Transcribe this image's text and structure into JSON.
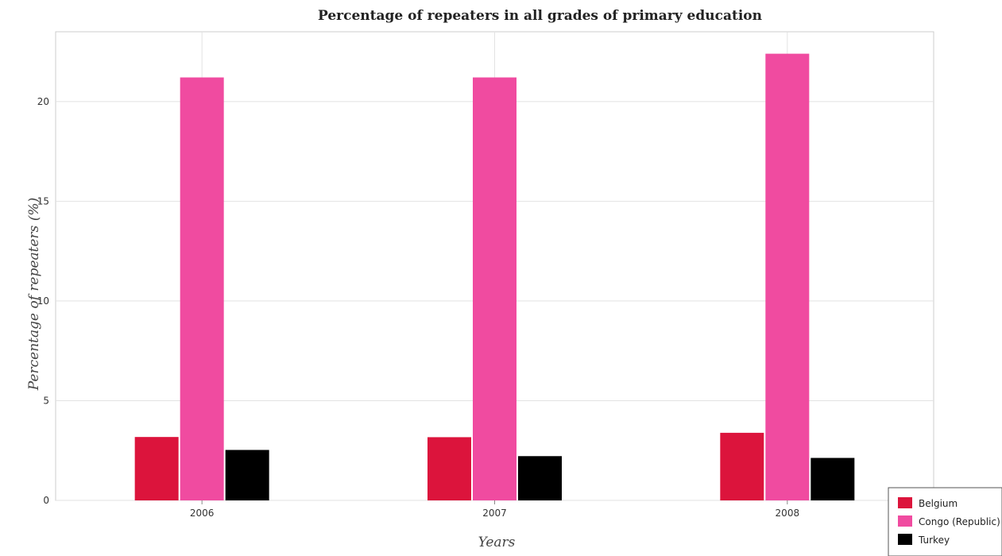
{
  "chart_data": {
    "type": "bar",
    "title": "Percentage of repeaters in all grades of primary education",
    "xlabel": "Years",
    "ylabel": "Percentage of repeaters (%)",
    "categories": [
      "2006",
      "2007",
      "2008"
    ],
    "ylim": [
      0,
      23.5
    ],
    "yticks": [
      0,
      5,
      10,
      15,
      20
    ],
    "grid": true,
    "legend_position": "bottom-right",
    "series": [
      {
        "name": "Belgium",
        "color": "#dc143c",
        "values": [
          3.18,
          3.17,
          3.39
        ]
      },
      {
        "name": "Congo (Republic)",
        "color": "#f04ba0",
        "values": [
          21.21,
          21.21,
          22.4
        ]
      },
      {
        "name": "Turkey",
        "color": "#000000",
        "values": [
          2.53,
          2.22,
          2.13
        ]
      }
    ]
  }
}
